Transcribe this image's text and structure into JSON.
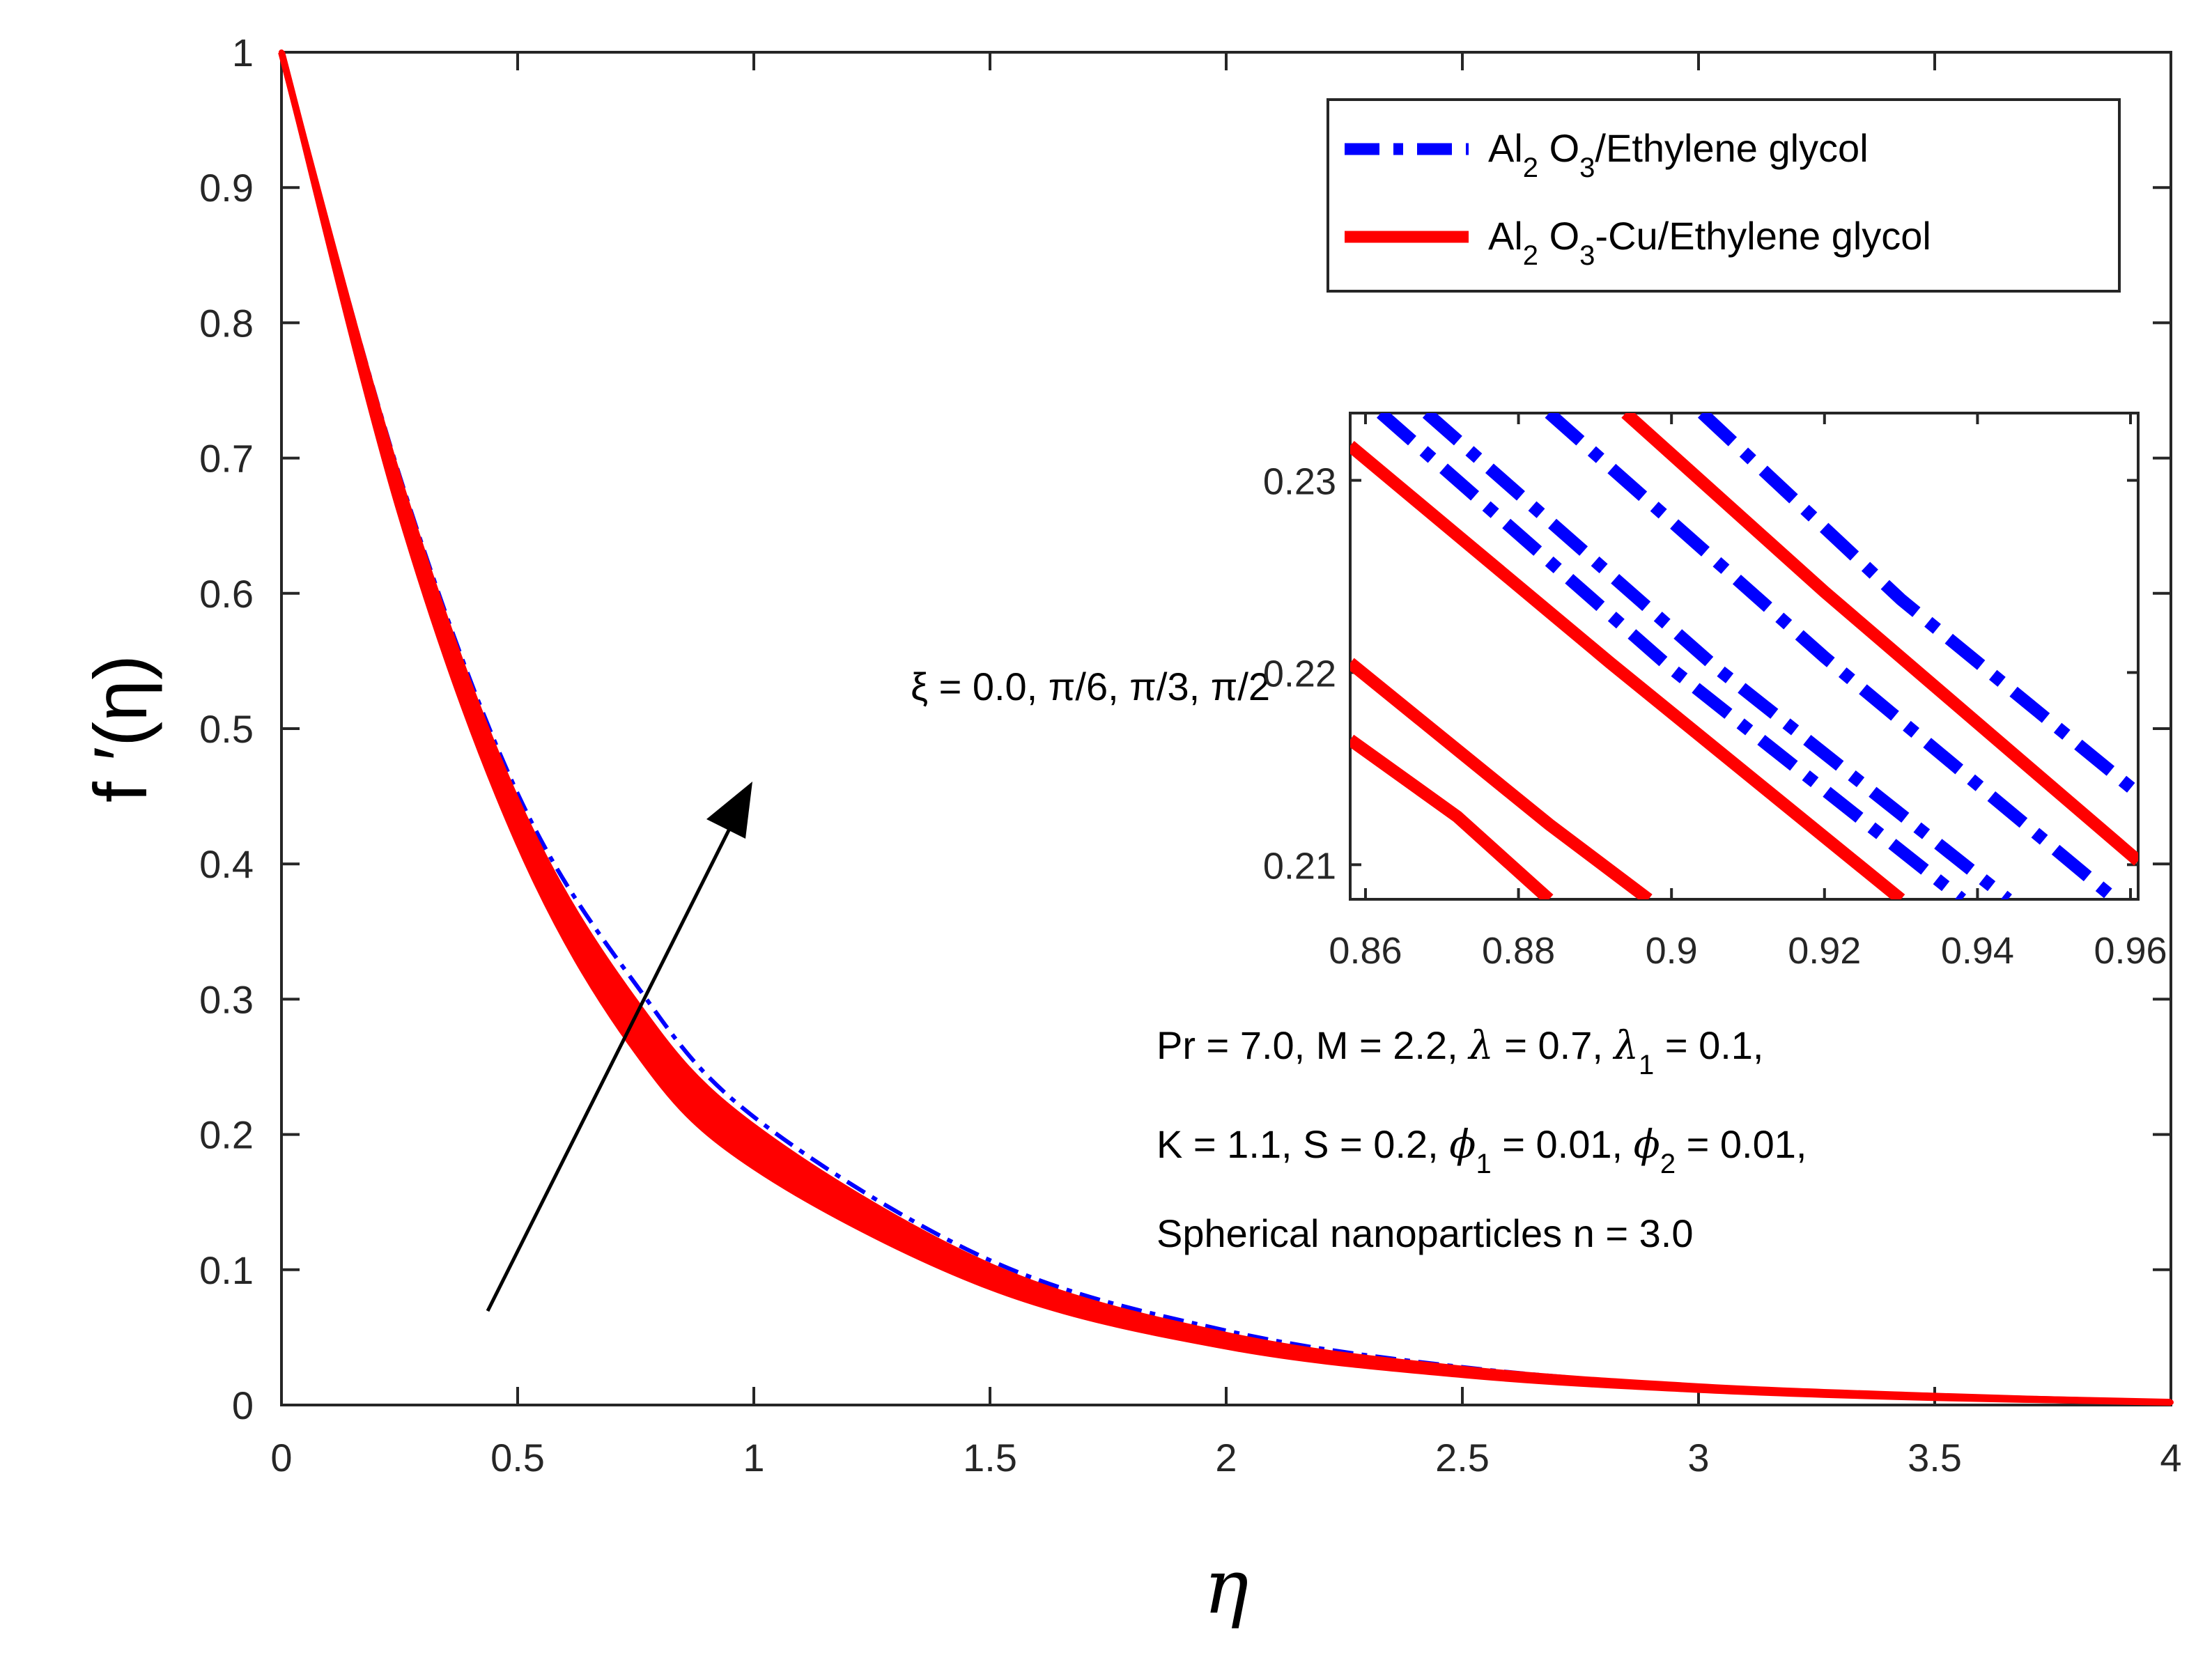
{
  "chart_data": {
    "type": "line",
    "main": {
      "xlabel": "η",
      "ylabel": "f ′(η)",
      "xlim": [
        0,
        4
      ],
      "ylim": [
        0,
        1
      ],
      "xticks": [
        "0",
        "0.5",
        "1",
        "1.5",
        "2",
        "2.5",
        "3",
        "3.5",
        "4"
      ],
      "yticks": [
        "0",
        "0.1",
        "0.2",
        "0.3",
        "0.4",
        "0.5",
        "0.6",
        "0.7",
        "0.8",
        "0.9",
        "1"
      ],
      "x": [
        0,
        0.25,
        0.5,
        0.75,
        1.0,
        1.5,
        2.0,
        2.5,
        3.0,
        3.5,
        4.0
      ],
      "series": [
        {
          "name": "Al2 O3/Ethylene glycol",
          "style": "dash-dot",
          "color": "#0000ff",
          "values": [
            1.0,
            0.687,
            0.452,
            0.311,
            0.213,
            0.107,
            0.055,
            0.028,
            0.014,
            0.007,
            0.002
          ]
        },
        {
          "name": "Al2 O3-Cu/Ethylene glycol",
          "style": "solid",
          "color": "#ff0000",
          "values": [
            1.0,
            0.672,
            0.426,
            0.276,
            0.186,
            0.091,
            0.045,
            0.023,
            0.012,
            0.006,
            0.002
          ]
        }
      ],
      "ribbon": {
        "name": "Al2 O3-Cu/Ethylene glycol (ξ = 0 … π/2)",
        "color": "#ff0000",
        "lower": [
          1.0,
          0.66,
          0.416,
          0.262,
          0.176,
          0.087,
          0.043,
          0.022,
          0.011,
          0.005,
          0.002
        ],
        "upper": [
          1.0,
          0.684,
          0.446,
          0.298,
          0.206,
          0.103,
          0.052,
          0.027,
          0.014,
          0.007,
          0.002
        ]
      }
    },
    "inset": {
      "xlim": [
        0.858,
        0.961
      ],
      "ylim": [
        0.2082,
        0.2335
      ],
      "xticks": [
        "0.86",
        "0.88",
        "0.9",
        "0.92",
        "0.94",
        "0.96"
      ],
      "yticks": [
        "0.21",
        "0.22",
        "0.23"
      ],
      "blue_lines": [
        {
          "x": [
            0.862,
            0.9,
            0.938
          ],
          "y": [
            0.2335,
            0.2202,
            0.2082
          ]
        },
        {
          "x": [
            0.868,
            0.906,
            0.944
          ],
          "y": [
            0.2335,
            0.2202,
            0.2082
          ]
        },
        {
          "x": [
            0.884,
            0.92,
            0.958
          ],
          "y": [
            0.2335,
            0.2208,
            0.2082
          ]
        },
        {
          "x": [
            0.904,
            0.93,
            0.961
          ],
          "y": [
            0.2335,
            0.2238,
            0.2137
          ]
        }
      ],
      "red_lines": [
        {
          "x": [
            0.858,
            0.872,
            0.884
          ],
          "y": [
            0.2165,
            0.2125,
            0.2082
          ]
        },
        {
          "x": [
            0.858,
            0.884,
            0.897
          ],
          "y": [
            0.2205,
            0.2121,
            0.2082
          ]
        },
        {
          "x": [
            0.858,
            0.892,
            0.93
          ],
          "y": [
            0.2318,
            0.2205,
            0.2082
          ]
        },
        {
          "x": [
            0.894,
            0.92,
            0.961
          ],
          "y": [
            0.2335,
            0.2242,
            0.2102
          ]
        }
      ]
    },
    "arrow_label": "ξ = 0.0, π/6, π/3, π/2",
    "legend": {
      "position": "top-right",
      "entries": [
        {
          "parts": [
            "Al",
            "2",
            " O",
            "3",
            "/Ethylene glycol"
          ]
        },
        {
          "parts": [
            "Al",
            "2",
            " O",
            "3",
            "-Cu/Ethylene glycol"
          ]
        }
      ]
    },
    "parameters": {
      "line1": [
        "Pr = 7.0, M = 2.2, ",
        "λ",
        " = 0.7, ",
        "λ",
        "1",
        " = 0.1,"
      ],
      "line2": [
        "K = 1.1, S = 0.2, ",
        "ϕ",
        "1",
        " = 0.01, ",
        "ϕ",
        "2",
        " = 0.01,"
      ],
      "line3": "Spherical nanoparticles n = 3.0"
    },
    "colors": {
      "blue": "#0000ff",
      "red": "#ff0000",
      "axis": "#262626"
    }
  }
}
